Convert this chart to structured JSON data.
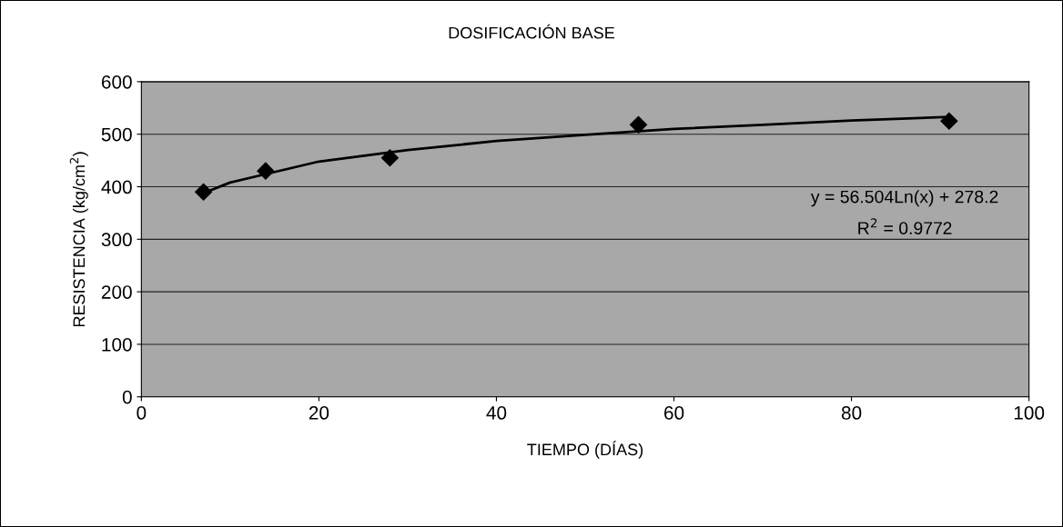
{
  "chart_data": {
    "type": "scatter",
    "title": "DOSIFICACIÓN BASE",
    "xlabel": "TIEMPO (DÍAS)",
    "ylabel": "RESISTENCIA (kg/cm$^{2}$)",
    "xlim": [
      0,
      100
    ],
    "xticks": [
      0,
      20,
      40,
      60,
      80,
      100
    ],
    "ylim": [
      0,
      600
    ],
    "yticks": [
      0,
      100,
      200,
      300,
      400,
      500,
      600
    ],
    "grid": "y",
    "marker": "diamond",
    "series": [
      {
        "color": "#000000",
        "x": [
          7,
          14,
          28,
          56,
          91
        ],
        "values": [
          390,
          430,
          455,
          518,
          525
        ]
      },
      {
        "type": "line",
        "color": "#000000",
        "marker": "none",
        "x": [
          7,
          10,
          20,
          30,
          40,
          50,
          60,
          70,
          80,
          91
        ],
        "values": [
          388,
          408,
          448,
          470,
          487,
          499,
          510,
          518,
          526,
          533
        ]
      }
    ],
    "annotations": [
      "y = 56.504Ln(x) + 278.2",
      "R$^{2}$ = 0.9772"
    ]
  }
}
